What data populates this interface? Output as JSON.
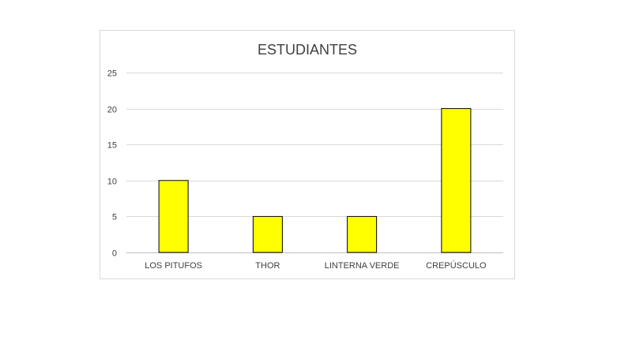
{
  "chart_data": {
    "type": "bar",
    "title": "ESTUDIANTES",
    "categories": [
      "LOS PITUFOS",
      "THOR",
      "LINTERNA VERDE",
      "CREPÚSCULO"
    ],
    "values": [
      10,
      5,
      5,
      20
    ],
    "xlabel": "",
    "ylabel": "",
    "ylim": [
      0,
      25
    ],
    "yticks": [
      0,
      5,
      10,
      15,
      20,
      25
    ],
    "grid": true,
    "legend": "none",
    "bar_color": "#FFFF00",
    "bar_outline": "#000000"
  }
}
